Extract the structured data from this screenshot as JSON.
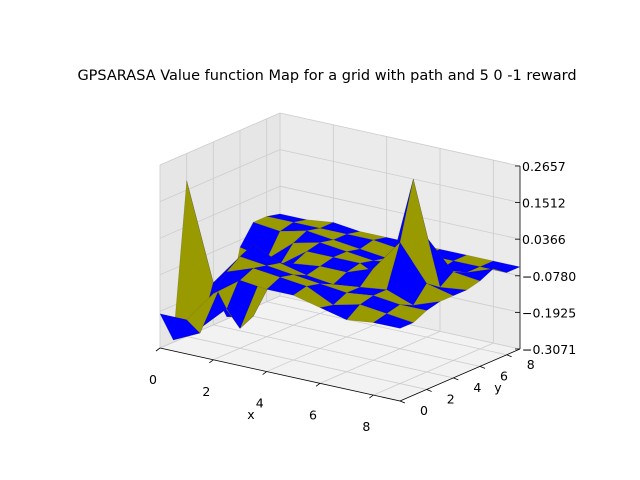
{
  "chart_data": {
    "type": "surface",
    "title": "GPSARASA Value function Map for a grid with path and 5 0 -1 reward",
    "xlabel": "x",
    "ylabel": "y",
    "zlabel": "",
    "x_ticks": [
      "0",
      "2",
      "4",
      "6",
      "8"
    ],
    "y_ticks": [
      "0",
      "2",
      "4",
      "6",
      "8"
    ],
    "z_ticks": [
      "0.2657",
      "0.1512",
      "0.0366",
      "−0.0780",
      "−0.1925",
      "−0.3071"
    ],
    "xlim": [
      0,
      9
    ],
    "ylim": [
      0,
      9
    ],
    "zlim": [
      -0.3071,
      0.2657
    ],
    "grid": true,
    "colors": {
      "face_a": "#0000ff",
      "face_b": "#999900",
      "pane": "#f2f2f2",
      "grid": "#cccccc"
    },
    "z": [
      [
        -0.2,
        -0.3,
        0.18,
        -0.3,
        -0.2,
        -0.3,
        -0.1,
        -0.04,
        -0.04,
        -0.05
      ],
      [
        -0.2,
        -0.26,
        -0.12,
        -0.22,
        -0.3,
        -0.28,
        -0.12,
        -0.05,
        -0.04,
        -0.05
      ],
      [
        -0.1,
        -0.05,
        -0.02,
        0.0,
        -0.08,
        -0.1,
        -0.05,
        -0.03,
        -0.04,
        -0.04
      ],
      [
        -0.04,
        -0.02,
        -0.03,
        -0.04,
        -0.06,
        -0.04,
        -0.03,
        -0.04,
        -0.04,
        -0.05
      ],
      [
        -0.05,
        -0.03,
        -0.04,
        -0.06,
        -0.05,
        -0.04,
        -0.04,
        -0.05,
        -0.04,
        -0.05
      ],
      [
        -0.05,
        -0.04,
        -0.05,
        -0.07,
        -0.05,
        -0.04,
        -0.05,
        -0.06,
        -0.05,
        -0.05
      ],
      [
        -0.07,
        -0.08,
        -0.06,
        -0.06,
        -0.02,
        -0.08,
        -0.04,
        -0.05,
        -0.05,
        -0.05
      ],
      [
        -0.09,
        -0.06,
        -0.05,
        -0.05,
        0.08,
        0.26,
        0.06,
        -0.06,
        -0.05,
        -0.05
      ],
      [
        -0.08,
        -0.07,
        -0.06,
        -0.08,
        -0.03,
        -0.06,
        -0.03,
        -0.05,
        -0.05,
        -0.05
      ],
      [
        -0.08,
        -0.08,
        -0.06,
        -0.05,
        -0.05,
        -0.05,
        -0.04,
        -0.02,
        -0.05,
        -0.05
      ]
    ]
  }
}
